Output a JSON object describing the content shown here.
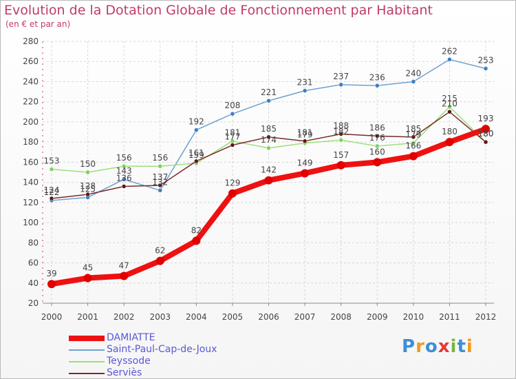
{
  "title": "Evolution de la Dotation Globale de Fonctionnement par Habitant",
  "subtitle": "(en € et par an)",
  "logo": {
    "text": "Proxiti",
    "letters": [
      "P",
      "r",
      "o",
      "x",
      "i",
      "t",
      "i"
    ],
    "colors": [
      "#3d8fd6",
      "#f39a1e",
      "#3d8fd6",
      "#e53935",
      "#7cb342",
      "#3d8fd6",
      "#f39a1e"
    ]
  },
  "chart_data": {
    "type": "line",
    "title": "Evolution de la Dotation Globale de Fonctionnement par Habitant",
    "subtitle": "(en € et par an)",
    "xlabel": "",
    "ylabel": "",
    "x": [
      "2000",
      "2001",
      "2002",
      "2003",
      "2004",
      "2005",
      "2006",
      "2007",
      "2008",
      "2009",
      "2010",
      "2011",
      "2012"
    ],
    "ylim": [
      20,
      280
    ],
    "yticks": [
      "20",
      "40",
      "60",
      "80",
      "100",
      "120",
      "140",
      "160",
      "180",
      "200",
      "220",
      "240",
      "260",
      "280"
    ],
    "grid": true,
    "legend_position": "bottom-left",
    "series": [
      {
        "name": "Saint-Paul-Cap-de-Joux",
        "color": "#6fa0cf",
        "dot": "#3c7fc6",
        "values": [
          122,
          125,
          143,
          132,
          192,
          208,
          221,
          231,
          237,
          236,
          240,
          262,
          253
        ],
        "labels": [
          "122",
          "125",
          "143",
          "132",
          "192",
          "208",
          "221",
          "231",
          "237",
          "236",
          "240",
          "262",
          "253"
        ]
      },
      {
        "name": "Teyssode",
        "color": "#9be07a",
        "dot": "#7dd35a",
        "values": [
          153,
          150,
          156,
          156,
          159,
          181,
          174,
          179,
          182,
          176,
          179,
          215,
          180
        ],
        "labels": [
          "153",
          "150",
          "156",
          "156",
          "159",
          "181",
          "174",
          "179",
          "182",
          "176",
          "179",
          "215",
          "180"
        ]
      },
      {
        "name": "Serviès",
        "color": "#7a2a2a",
        "dot": "#5a1818",
        "values": [
          124,
          128,
          136,
          137,
          161,
          177,
          185,
          181,
          188,
          186,
          185,
          210,
          180
        ],
        "labels": [
          "124",
          "128",
          "136",
          "137",
          "161",
          "177",
          "185",
          "181",
          "188",
          "186",
          "185",
          "210",
          "180"
        ]
      },
      {
        "name": "DAMIATTE",
        "color": "#ee1111",
        "dot": "#e00000",
        "values": [
          39,
          45,
          47,
          62,
          82,
          129,
          142,
          149,
          157,
          160,
          166,
          180,
          193
        ],
        "labels": [
          "39",
          "45",
          "47",
          "62",
          "82",
          "129",
          "142",
          "149",
          "157",
          "160",
          "166",
          "180",
          "193"
        ]
      }
    ],
    "legend": [
      {
        "name": "DAMIATTE",
        "color": "#ee1111",
        "thick": true
      },
      {
        "name": "Saint-Paul-Cap-de-Joux",
        "color": "#6fa0cf",
        "thick": false
      },
      {
        "name": "Teyssode",
        "color": "#9be07a",
        "thick": false
      },
      {
        "name": "Serviès",
        "color": "#7a2a2a",
        "thick": false
      }
    ]
  }
}
